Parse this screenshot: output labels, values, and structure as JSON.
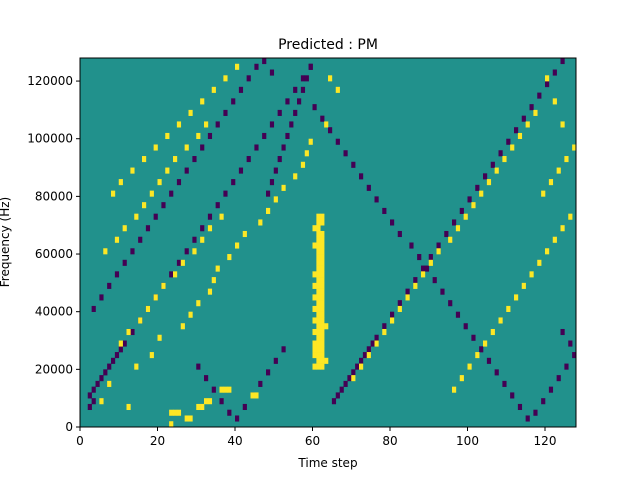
{
  "chart_data": {
    "type": "heatmap",
    "title": "Predicted : PM",
    "xlabel": "Time step",
    "ylabel": "Frequency (Hz)",
    "xlim": [
      0,
      128
    ],
    "ylim": [
      0,
      128000
    ],
    "xticks": [
      0,
      20,
      40,
      60,
      80,
      100,
      120
    ],
    "yticks": [
      0,
      20000,
      40000,
      60000,
      80000,
      100000,
      120000
    ],
    "n_time_steps": 128,
    "n_freq_bins": 64,
    "freq_bin_hz": 2000,
    "levels": {
      "low": -1,
      "background": 0,
      "high": 1
    },
    "colors": {
      "low": "#440154",
      "background": "#21918c",
      "high": "#fde725"
    },
    "background_level": 0,
    "cells_high": [
      [
        23,
        0
      ],
      [
        27,
        1
      ],
      [
        28,
        1
      ],
      [
        23,
        2
      ],
      [
        24,
        2
      ],
      [
        25,
        2
      ],
      [
        30,
        3
      ],
      [
        31,
        3
      ],
      [
        32,
        4
      ],
      [
        33,
        4
      ],
      [
        36,
        6
      ],
      [
        37,
        6
      ],
      [
        38,
        6
      ],
      [
        44,
        5
      ],
      [
        45,
        5
      ],
      [
        60,
        10
      ],
      [
        61,
        10
      ],
      [
        62,
        10
      ],
      [
        61,
        11
      ],
      [
        62,
        11
      ],
      [
        63,
        11
      ],
      [
        60,
        12
      ],
      [
        61,
        12
      ],
      [
        62,
        12
      ],
      [
        60,
        13
      ],
      [
        61,
        13
      ],
      [
        62,
        13
      ],
      [
        60,
        14
      ],
      [
        61,
        14
      ],
      [
        62,
        14
      ],
      [
        61,
        15
      ],
      [
        62,
        15
      ],
      [
        60,
        16
      ],
      [
        61,
        16
      ],
      [
        62,
        16
      ],
      [
        61,
        17
      ],
      [
        62,
        17
      ],
      [
        63,
        17
      ],
      [
        60,
        18
      ],
      [
        61,
        18
      ],
      [
        62,
        18
      ],
      [
        61,
        19
      ],
      [
        62,
        19
      ],
      [
        60,
        20
      ],
      [
        61,
        20
      ],
      [
        62,
        20
      ],
      [
        61,
        21
      ],
      [
        62,
        21
      ],
      [
        60,
        22
      ],
      [
        61,
        22
      ],
      [
        62,
        22
      ],
      [
        61,
        23
      ],
      [
        62,
        23
      ],
      [
        60,
        24
      ],
      [
        61,
        24
      ],
      [
        62,
        24
      ],
      [
        61,
        25
      ],
      [
        62,
        25
      ],
      [
        60,
        26
      ],
      [
        61,
        26
      ],
      [
        62,
        26
      ],
      [
        61,
        27
      ],
      [
        62,
        27
      ],
      [
        61,
        28
      ],
      [
        62,
        28
      ],
      [
        61,
        29
      ],
      [
        62,
        29
      ],
      [
        61,
        30
      ],
      [
        62,
        30
      ],
      [
        60,
        31
      ],
      [
        61,
        31
      ],
      [
        62,
        31
      ],
      [
        61,
        32
      ],
      [
        62,
        32
      ],
      [
        61,
        33
      ],
      [
        62,
        33
      ],
      [
        60,
        34
      ],
      [
        61,
        34
      ],
      [
        61,
        35
      ],
      [
        62,
        35
      ],
      [
        61,
        36
      ],
      [
        62,
        36
      ],
      [
        5,
        4
      ],
      [
        7,
        7
      ],
      [
        12,
        3
      ],
      [
        14,
        10
      ],
      [
        18,
        12
      ],
      [
        20,
        15
      ],
      [
        26,
        17
      ],
      [
        28,
        19
      ],
      [
        30,
        21
      ],
      [
        33,
        23
      ],
      [
        34,
        25
      ],
      [
        35,
        27
      ],
      [
        38,
        29
      ],
      [
        40,
        31
      ],
      [
        42,
        33
      ],
      [
        46,
        35
      ],
      [
        48,
        37
      ],
      [
        50,
        39
      ],
      [
        52,
        41
      ],
      [
        55,
        43
      ],
      [
        57,
        45
      ],
      [
        58,
        47
      ],
      [
        59,
        49
      ],
      [
        64,
        60
      ],
      [
        66,
        58
      ],
      [
        63,
        52
      ],
      [
        10,
        14
      ],
      [
        12,
        16
      ],
      [
        15,
        18
      ],
      [
        17,
        20
      ],
      [
        19,
        22
      ],
      [
        21,
        24
      ],
      [
        24,
        26
      ],
      [
        26,
        28
      ],
      [
        29,
        30
      ],
      [
        31,
        32
      ],
      [
        33,
        34
      ],
      [
        36,
        36
      ],
      [
        8,
        40
      ],
      [
        10,
        42
      ],
      [
        13,
        44
      ],
      [
        16,
        46
      ],
      [
        19,
        48
      ],
      [
        22,
        50
      ],
      [
        25,
        52
      ],
      [
        28,
        54
      ],
      [
        31,
        56
      ],
      [
        34,
        58
      ],
      [
        37,
        60
      ],
      [
        40,
        62
      ],
      [
        6,
        30
      ],
      [
        9,
        32
      ],
      [
        11,
        34
      ],
      [
        14,
        36
      ],
      [
        16,
        38
      ],
      [
        18,
        40
      ],
      [
        20,
        42
      ],
      [
        22,
        44
      ],
      [
        24,
        46
      ],
      [
        27,
        48
      ],
      [
        30,
        50
      ],
      [
        32,
        52
      ],
      [
        70,
        8
      ],
      [
        72,
        10
      ],
      [
        74,
        12
      ],
      [
        76,
        14
      ],
      [
        78,
        16
      ],
      [
        80,
        18
      ],
      [
        82,
        20
      ],
      [
        84,
        22
      ],
      [
        86,
        24
      ],
      [
        88,
        26
      ],
      [
        90,
        28
      ],
      [
        92,
        30
      ],
      [
        95,
        32
      ],
      [
        97,
        34
      ],
      [
        99,
        36
      ],
      [
        101,
        38
      ],
      [
        103,
        40
      ],
      [
        105,
        42
      ],
      [
        107,
        44
      ],
      [
        109,
        46
      ],
      [
        111,
        48
      ],
      [
        113,
        50
      ],
      [
        115,
        52
      ],
      [
        117,
        54
      ],
      [
        96,
        6
      ],
      [
        98,
        8
      ],
      [
        100,
        10
      ],
      [
        102,
        12
      ],
      [
        104,
        14
      ],
      [
        106,
        16
      ],
      [
        108,
        18
      ],
      [
        110,
        20
      ],
      [
        112,
        22
      ],
      [
        114,
        24
      ],
      [
        116,
        26
      ],
      [
        118,
        28
      ],
      [
        120,
        30
      ],
      [
        122,
        32
      ],
      [
        124,
        34
      ],
      [
        126,
        36
      ],
      [
        119,
        40
      ],
      [
        121,
        42
      ],
      [
        123,
        44
      ],
      [
        125,
        46
      ],
      [
        127,
        48
      ],
      [
        124,
        52
      ],
      [
        122,
        56
      ],
      [
        120,
        60
      ]
    ],
    "cells_low": [
      [
        2,
        3
      ],
      [
        3,
        4
      ],
      [
        2,
        5
      ],
      [
        3,
        6
      ],
      [
        4,
        7
      ],
      [
        5,
        8
      ],
      [
        6,
        9
      ],
      [
        7,
        10
      ],
      [
        8,
        11
      ],
      [
        9,
        12
      ],
      [
        10,
        13
      ],
      [
        11,
        14
      ],
      [
        13,
        16
      ],
      [
        15,
        18
      ],
      [
        17,
        20
      ],
      [
        19,
        22
      ],
      [
        21,
        24
      ],
      [
        23,
        26
      ],
      [
        25,
        28
      ],
      [
        27,
        30
      ],
      [
        29,
        32
      ],
      [
        31,
        34
      ],
      [
        33,
        36
      ],
      [
        35,
        38
      ],
      [
        37,
        40
      ],
      [
        39,
        42
      ],
      [
        41,
        44
      ],
      [
        43,
        46
      ],
      [
        45,
        48
      ],
      [
        47,
        50
      ],
      [
        49,
        52
      ],
      [
        51,
        54
      ],
      [
        53,
        56
      ],
      [
        55,
        58
      ],
      [
        57,
        60
      ],
      [
        59,
        62
      ],
      [
        65,
        4
      ],
      [
        66,
        5
      ],
      [
        67,
        6
      ],
      [
        68,
        7
      ],
      [
        69,
        8
      ],
      [
        70,
        9
      ],
      [
        71,
        10
      ],
      [
        72,
        11
      ],
      [
        73,
        12
      ],
      [
        74,
        13
      ],
      [
        75,
        14
      ],
      [
        76,
        15
      ],
      [
        78,
        17
      ],
      [
        80,
        19
      ],
      [
        82,
        21
      ],
      [
        84,
        23
      ],
      [
        86,
        25
      ],
      [
        88,
        27
      ],
      [
        90,
        29
      ],
      [
        92,
        31
      ],
      [
        94,
        33
      ],
      [
        96,
        35
      ],
      [
        98,
        37
      ],
      [
        100,
        39
      ],
      [
        102,
        41
      ],
      [
        104,
        43
      ],
      [
        106,
        45
      ],
      [
        108,
        47
      ],
      [
        110,
        49
      ],
      [
        112,
        51
      ],
      [
        114,
        53
      ],
      [
        116,
        55
      ],
      [
        118,
        57
      ],
      [
        120,
        59
      ],
      [
        122,
        61
      ],
      [
        124,
        63
      ],
      [
        3,
        20
      ],
      [
        5,
        22
      ],
      [
        7,
        24
      ],
      [
        9,
        26
      ],
      [
        11,
        28
      ],
      [
        13,
        30
      ],
      [
        15,
        32
      ],
      [
        17,
        34
      ],
      [
        19,
        36
      ],
      [
        21,
        38
      ],
      [
        23,
        40
      ],
      [
        25,
        42
      ],
      [
        27,
        44
      ],
      [
        29,
        46
      ],
      [
        31,
        48
      ],
      [
        33,
        50
      ],
      [
        35,
        52
      ],
      [
        37,
        54
      ],
      [
        39,
        56
      ],
      [
        41,
        58
      ],
      [
        43,
        60
      ],
      [
        45,
        62
      ],
      [
        47,
        63
      ],
      [
        49,
        61
      ],
      [
        60,
        55
      ],
      [
        62,
        53
      ],
      [
        64,
        51
      ],
      [
        66,
        49
      ],
      [
        68,
        47
      ],
      [
        70,
        45
      ],
      [
        72,
        43
      ],
      [
        74,
        41
      ],
      [
        76,
        39
      ],
      [
        78,
        37
      ],
      [
        80,
        35
      ],
      [
        82,
        33
      ],
      [
        85,
        31
      ],
      [
        87,
        29
      ],
      [
        89,
        27
      ],
      [
        91,
        25
      ],
      [
        93,
        23
      ],
      [
        95,
        21
      ],
      [
        97,
        19
      ],
      [
        99,
        17
      ],
      [
        101,
        15
      ],
      [
        103,
        13
      ],
      [
        105,
        11
      ],
      [
        107,
        9
      ],
      [
        109,
        7
      ],
      [
        111,
        5
      ],
      [
        113,
        3
      ],
      [
        115,
        1
      ],
      [
        117,
        2
      ],
      [
        119,
        4
      ],
      [
        121,
        6
      ],
      [
        123,
        8
      ],
      [
        125,
        10
      ],
      [
        127,
        12
      ],
      [
        126,
        14
      ],
      [
        124,
        16
      ],
      [
        48,
        40
      ],
      [
        49,
        42
      ],
      [
        50,
        44
      ],
      [
        51,
        46
      ],
      [
        52,
        48
      ],
      [
        53,
        50
      ],
      [
        54,
        52
      ],
      [
        55,
        54
      ],
      [
        56,
        56
      ],
      [
        57,
        58
      ],
      [
        58,
        60
      ],
      [
        59,
        62
      ],
      [
        30,
        10
      ],
      [
        32,
        8
      ],
      [
        34,
        6
      ],
      [
        36,
        4
      ],
      [
        38,
        2
      ],
      [
        40,
        1
      ],
      [
        42,
        3
      ],
      [
        44,
        5
      ],
      [
        46,
        7
      ],
      [
        48,
        9
      ],
      [
        50,
        11
      ],
      [
        52,
        13
      ]
    ]
  }
}
